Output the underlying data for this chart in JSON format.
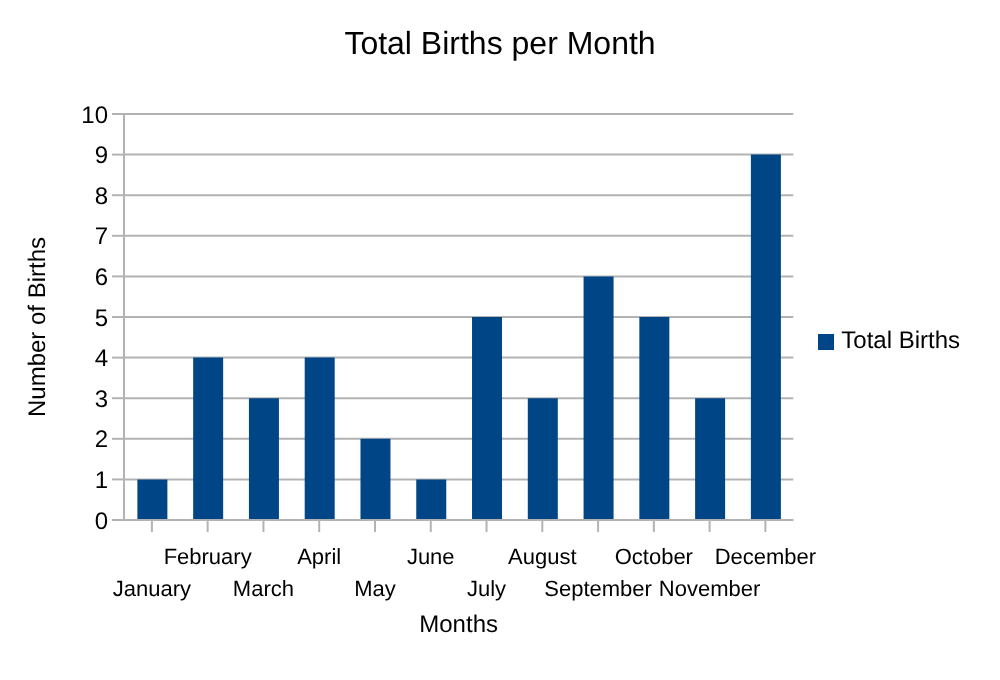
{
  "chart_data": {
    "type": "bar",
    "title": "Total Births per Month",
    "xlabel": "Months",
    "ylabel": "Number of Births",
    "categories": [
      "January",
      "February",
      "March",
      "April",
      "May",
      "June",
      "July",
      "August",
      "September",
      "October",
      "November",
      "December"
    ],
    "series": [
      {
        "name": "Total Births",
        "color": "#004586",
        "values": [
          1,
          4,
          3,
          4,
          2,
          1,
          5,
          3,
          6,
          5,
          3,
          9
        ]
      }
    ],
    "ylim": [
      0,
      10
    ],
    "yticks": [
      0,
      1,
      2,
      3,
      4,
      5,
      6,
      7,
      8,
      9,
      10
    ],
    "grid": "y",
    "legend": "right"
  }
}
